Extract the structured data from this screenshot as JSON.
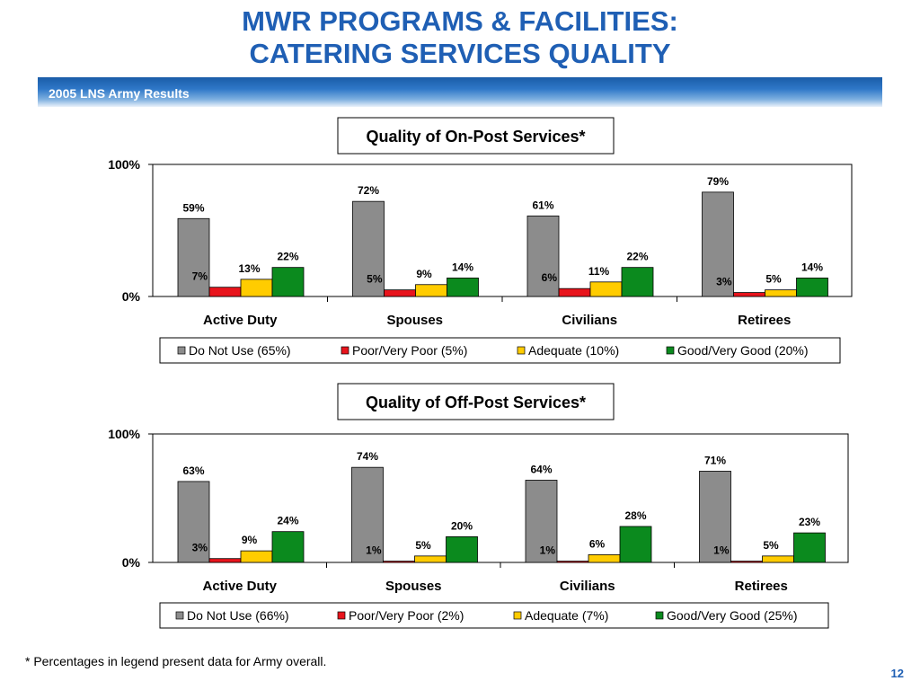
{
  "title_line1": "MWR PROGRAMS & FACILITIES:",
  "title_line2": "CATERING SERVICES QUALITY",
  "banner": "2005 LNS Army Results",
  "footnote": "* Percentages in legend present data for Army overall.",
  "page_number": "12",
  "colors": {
    "do_not_use": "#8c8c8c",
    "poor": "#e8141c",
    "adequate": "#ffcc00",
    "good": "#0b8a1e",
    "title": "#1f5fb4"
  },
  "chart_data": [
    {
      "type": "bar",
      "title": "Quality of On-Post Services*",
      "categories": [
        "Active Duty",
        "Spouses",
        "Civilians",
        "Retirees"
      ],
      "series": [
        {
          "name": "Do Not Use (65%)",
          "values": [
            59,
            72,
            61,
            79
          ]
        },
        {
          "name": "Poor/Very Poor (5%)",
          "values": [
            7,
            5,
            6,
            3
          ]
        },
        {
          "name": "Adequate (10%)",
          "values": [
            13,
            9,
            11,
            5
          ]
        },
        {
          "name": "Good/Very Good (20%)",
          "values": [
            22,
            14,
            22,
            14
          ]
        }
      ],
      "yticks": [
        "0%",
        "100%"
      ],
      "ylim": [
        0,
        100
      ],
      "legend": "bottom"
    },
    {
      "type": "bar",
      "title": "Quality of Off-Post Services*",
      "categories": [
        "Active Duty",
        "Spouses",
        "Civilians",
        "Retirees"
      ],
      "series": [
        {
          "name": "Do Not Use (66%)",
          "values": [
            63,
            74,
            64,
            71
          ]
        },
        {
          "name": "Poor/Very Poor (2%)",
          "values": [
            3,
            1,
            1,
            1
          ]
        },
        {
          "name": "Adequate (7%)",
          "values": [
            9,
            5,
            6,
            5
          ]
        },
        {
          "name": "Good/Very Good (25%)",
          "values": [
            24,
            20,
            28,
            23
          ]
        }
      ],
      "yticks": [
        "0%",
        "100%"
      ],
      "ylim": [
        0,
        100
      ],
      "legend": "bottom"
    }
  ]
}
